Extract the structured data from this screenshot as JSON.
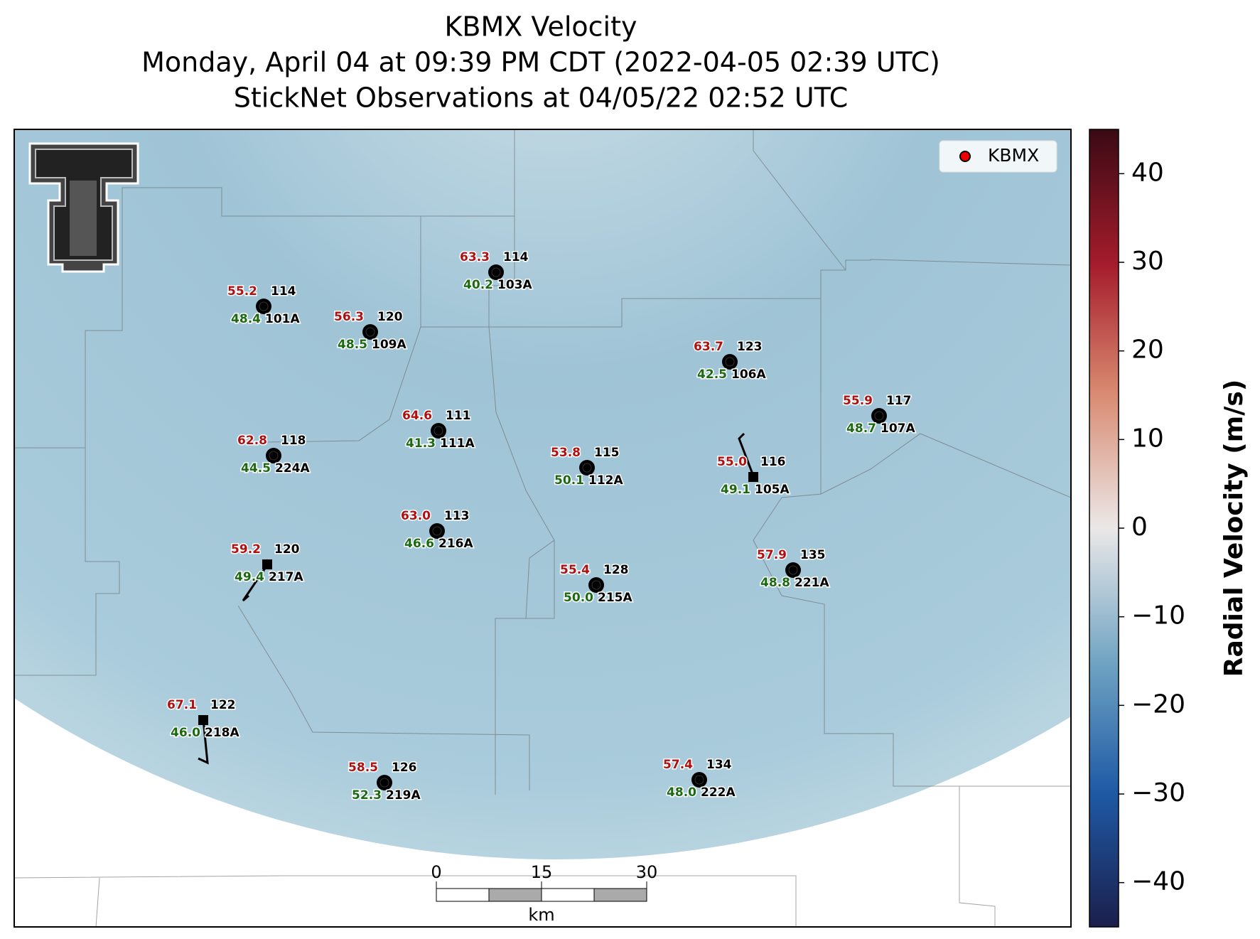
{
  "title": [
    "KBMX Velocity",
    "Monday, April 04 at 09:39 PM CDT (2022-04-05 02:39 UTC)",
    "StickNet Observations at 04/05/22 02:52 UTC"
  ],
  "legend": "KBMX",
  "stations": [
    {
      "temp": "63.3",
      "dew": "40.2",
      "value": "114",
      "id": "103A"
    },
    {
      "temp": "55.2",
      "dew": "48.4",
      "value": "114",
      "id": "101A"
    },
    {
      "temp": "56.3",
      "dew": "48.5",
      "value": "120",
      "id": "109A"
    },
    {
      "temp": "63.7",
      "dew": "42.5",
      "value": "123",
      "id": "106A"
    },
    {
      "temp": "55.9",
      "dew": "48.7",
      "value": "117",
      "id": "107A"
    },
    {
      "temp": "64.6",
      "dew": "41.3",
      "value": "111",
      "id": "111A"
    },
    {
      "temp": "62.8",
      "dew": "44.5",
      "value": "118",
      "id": "224A"
    },
    {
      "temp": "53.8",
      "dew": "50.1",
      "value": "115",
      "id": "112A"
    },
    {
      "temp": "55.0",
      "dew": "49.1",
      "value": "116",
      "id": "105A"
    },
    {
      "temp": "63.0",
      "dew": "46.6",
      "value": "113",
      "id": "216A"
    },
    {
      "temp": "59.2",
      "dew": "49.4",
      "value": "120",
      "id": "217A"
    },
    {
      "temp": "55.4",
      "dew": "50.0",
      "value": "128",
      "id": "215A"
    },
    {
      "temp": "57.9",
      "dew": "48.8",
      "value": "135",
      "id": "221A"
    },
    {
      "temp": "67.1",
      "dew": "46.0",
      "value": "122",
      "id": "218A"
    },
    {
      "temp": "58.5",
      "dew": "52.3",
      "value": "126",
      "id": "219A"
    },
    {
      "temp": "57.4",
      "dew": "48.0",
      "value": "134",
      "id": "222A"
    }
  ],
  "scale_bar": {
    "ticks": [
      "0",
      "15",
      "30"
    ],
    "unit": "km"
  },
  "colorbar": {
    "label": "Radial Velocity (m/s)",
    "lim": [
      -45,
      45
    ],
    "ticks": [
      40,
      30,
      20,
      10,
      0,
      {
        "value": -10,
        "label": "−10"
      },
      {
        "value": -20,
        "label": "−20"
      },
      {
        "value": -30,
        "label": "−30"
      },
      {
        "value": -40,
        "label": "−40"
      }
    ]
  }
}
